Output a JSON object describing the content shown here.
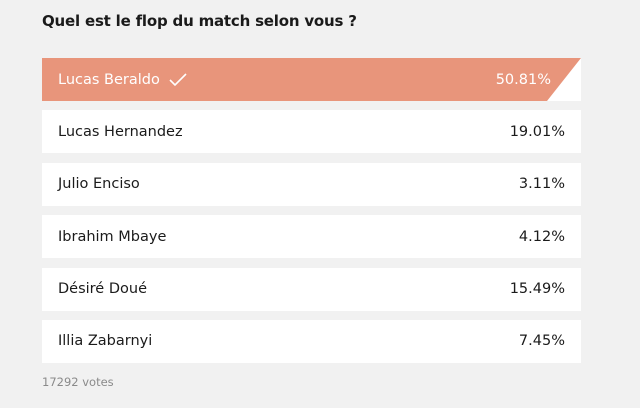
{
  "poll": {
    "question": "Quel est le flop du match selon vous ?",
    "options": [
      {
        "label": "Lucas Beraldo",
        "percent": "50.81%",
        "selected": true
      },
      {
        "label": "Lucas Hernandez",
        "percent": "19.01%",
        "selected": false
      },
      {
        "label": "Julio Enciso",
        "percent": "3.11%",
        "selected": false
      },
      {
        "label": "Ibrahim Mbaye",
        "percent": "4.12%",
        "selected": false
      },
      {
        "label": "Désiré Doué",
        "percent": "15.49%",
        "selected": false
      },
      {
        "label": "Illia Zabarnyi",
        "percent": "7.45%",
        "selected": false
      }
    ],
    "votes": "17292 votes"
  },
  "colors": {
    "selected_bg": "#e8957b",
    "option_bg": "#ffffff",
    "page_bg": "#f1f1f1"
  },
  "icons": {
    "selected_mark": "checkmark-icon"
  }
}
